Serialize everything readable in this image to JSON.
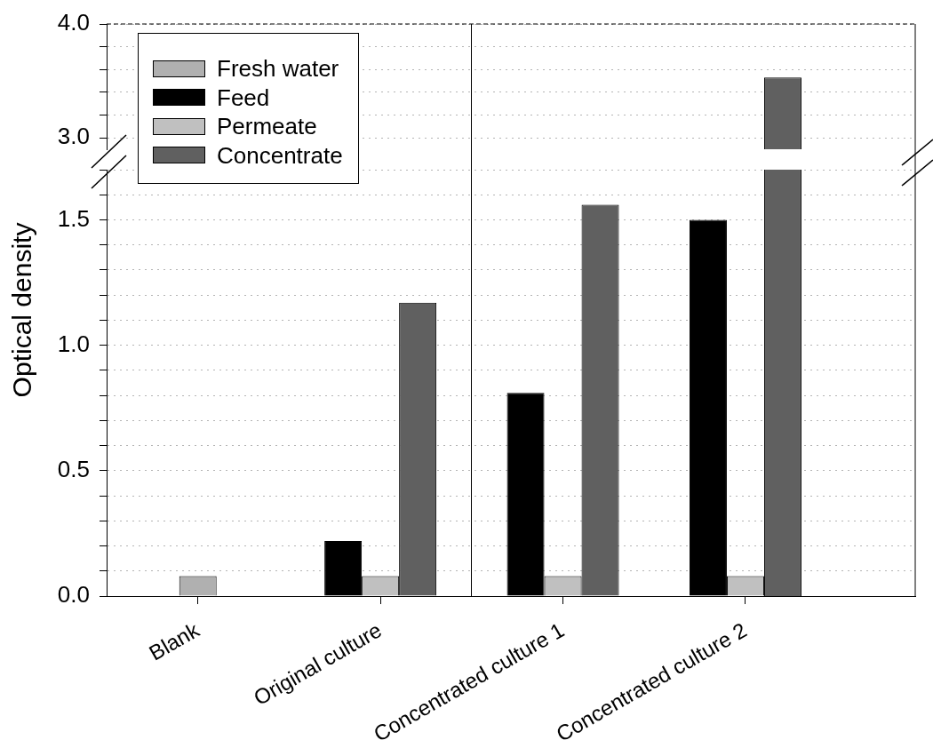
{
  "chart_data": [
    {
      "type": "bar",
      "categories": [
        null,
        null,
        null,
        null
      ],
      "series": [
        {
          "color": "#606060",
          "values": [
            null,
            null,
            null,
            3.53
          ]
        }
      ],
      "ylim": [
        2.9,
        4.0
      ],
      "yticks": [
        {
          "value": 3,
          "label": "3.0"
        },
        {
          "value": 3.2,
          "label": null
        },
        {
          "value": 3.4,
          "label": null
        },
        {
          "value": 3.6,
          "label": null
        },
        {
          "value": 3.8,
          "label": null
        },
        {
          "value": 4,
          "label": "4.0"
        }
      ],
      "grid": "y",
      "tick_labels": "y"
    },
    {
      "type": "bar",
      "ylabel": "Optical density",
      "categories": [
        "Blank",
        "Original culture",
        "Concentrated culture 1",
        "Concentrated culture 2"
      ],
      "series": [
        {
          "name": "Fresh water",
          "color": "#b0b0b0",
          "values": [
            0.08,
            null,
            null,
            null
          ]
        },
        {
          "name": "Feed",
          "color": "#000000",
          "values": [
            null,
            0.22,
            0.81,
            1.5
          ]
        },
        {
          "name": "Permeate",
          "color": "#c0c0c0",
          "values": [
            null,
            0.08,
            0.08,
            0.08
          ]
        },
        {
          "name": "Concentrate",
          "color": "#606060",
          "values": [
            null,
            1.17,
            1.56,
            null
          ]
        }
      ],
      "ylim": [
        0,
        1.7
      ],
      "yticks": [
        {
          "value": 0,
          "label": "0.0"
        },
        {
          "value": 0.1,
          "label": null
        },
        {
          "value": 0.2,
          "label": null
        },
        {
          "value": 0.3,
          "label": null
        },
        {
          "value": 0.4,
          "label": null
        },
        {
          "value": 0.5,
          "label": "0.5"
        },
        {
          "value": 0.6,
          "label": null
        },
        {
          "value": 0.7,
          "label": null
        },
        {
          "value": 0.8,
          "label": null
        },
        {
          "value": 0.9,
          "label": null
        },
        {
          "value": 1,
          "label": "1.0"
        },
        {
          "value": 1.1,
          "label": null
        },
        {
          "value": 1.2,
          "label": null
        },
        {
          "value": 1.3,
          "label": null
        },
        {
          "value": 1.4,
          "label": null
        },
        {
          "value": 1.5,
          "label": "1.5"
        },
        {
          "value": 1.6,
          "label": null
        },
        {
          "value": 1.7,
          "label": null
        }
      ],
      "grid": "y",
      "legend": "top left"
    }
  ]
}
